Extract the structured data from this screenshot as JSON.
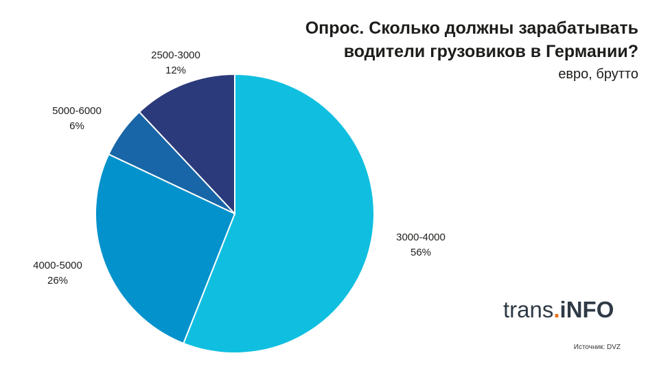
{
  "chart_data": {
    "type": "pie",
    "title_line1": "Опрос. Сколько должны зарабатывать",
    "title_line2": "водители грузовиков в Германии?",
    "subtitle": "евро, брутто",
    "slices": [
      {
        "category": "3000-4000",
        "value": 56,
        "label": "56%",
        "color": "#10bfe0"
      },
      {
        "category": "4000-5000",
        "value": 26,
        "label": "26%",
        "color": "#0392cc"
      },
      {
        "category": "5000-6000",
        "value": 6,
        "label": "6%",
        "color": "#1866a7"
      },
      {
        "category": "2500-3000",
        "value": 12,
        "label": "12%",
        "color": "#2b3a7a"
      }
    ]
  },
  "branding": {
    "logo_part1": "trans",
    "logo_dot": ".",
    "logo_part2": "iNFO",
    "source": "Источник: DVZ"
  }
}
